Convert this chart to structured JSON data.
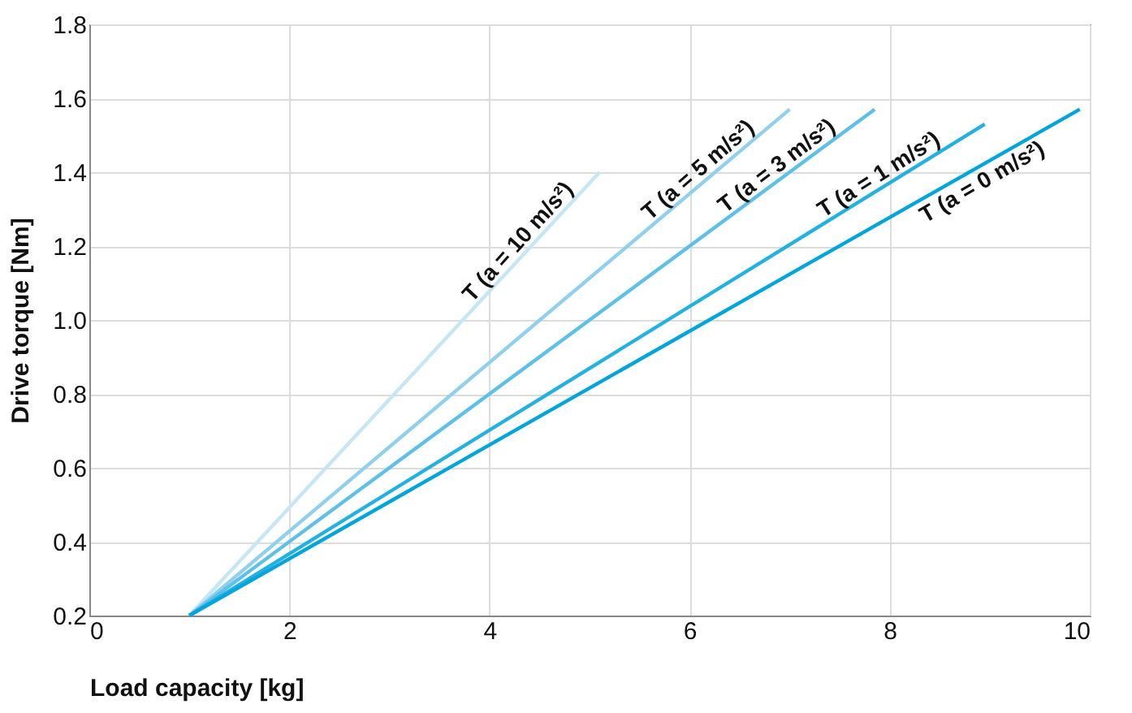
{
  "chart_data": {
    "type": "line",
    "xlabel": "Load capacity [kg]",
    "ylabel": "Drive torque [Nm]",
    "xlim": [
      0,
      10
    ],
    "xticks": [
      0,
      2,
      4,
      6,
      8,
      10
    ],
    "ylim": [
      0.2,
      1.8
    ],
    "yticks": [
      0.2,
      0.4,
      0.6,
      0.8,
      {
        "value": 1.0,
        "label": "1.0"
      },
      1.2,
      1.4,
      1.6,
      1.8
    ],
    "grid": true,
    "line_style": "solid",
    "marker": "none",
    "series": [
      {
        "name": "T (a = 10 m/s²)",
        "color": "#c5e6f5",
        "x": [
          1,
          5.1
        ],
        "values": [
          0.2,
          1.4
        ]
      },
      {
        "name": "T (a = 5 m/s²)",
        "color": "#8fd0ee",
        "x": [
          1,
          7.0
        ],
        "values": [
          0.2,
          1.57
        ]
      },
      {
        "name": "T (a = 3 m/s²)",
        "color": "#5cc0e8",
        "x": [
          1,
          7.85
        ],
        "values": [
          0.2,
          1.57
        ]
      },
      {
        "name": "T (a = 1 m/s²)",
        "color": "#22b1e0",
        "x": [
          1,
          8.95
        ],
        "values": [
          0.2,
          1.53
        ]
      },
      {
        "name": "T (a = 0 m/s²)",
        "color": "#00a5dc",
        "x": [
          1,
          9.9
        ],
        "values": [
          0.2,
          1.57
        ]
      }
    ]
  }
}
